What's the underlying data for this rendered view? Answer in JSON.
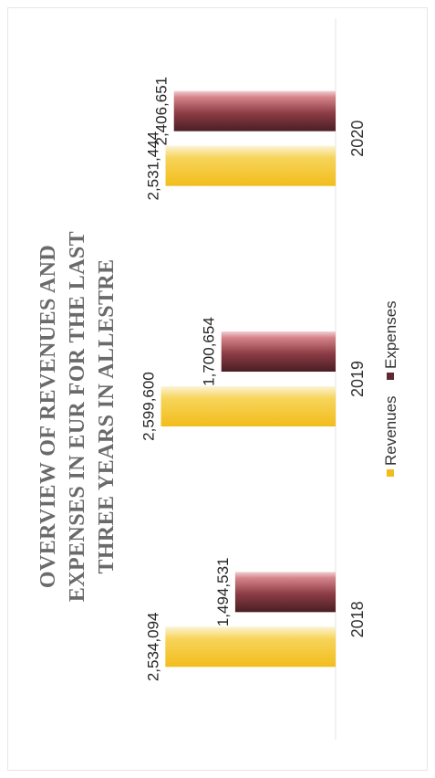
{
  "chart_data": {
    "type": "bar",
    "title_lines": [
      "OVERVIEW OF REVENUES AND",
      "EXPENSES IN EUR FOR THE LAST",
      "THREE YEARS IN ALLESTRE"
    ],
    "categories": [
      "2018",
      "2019",
      "2020"
    ],
    "series": [
      {
        "name": "Revenues",
        "values": [
          2534094,
          2599600,
          2531444
        ],
        "labels": [
          "2,534,094",
          "2,599,600",
          "2,531,444"
        ],
        "color": "#f2bd1c"
      },
      {
        "name": "Expenses",
        "values": [
          1494531,
          1700654,
          2406651
        ],
        "labels": [
          "1,494,531",
          "1,700,654",
          "2,406,651"
        ],
        "color": "#5e2a31"
      }
    ],
    "xlabel": "",
    "ylabel": "",
    "ylim": [
      0,
      3000000
    ],
    "grid": false,
    "legend_position": "bottom",
    "orientation": "rotated-90-ccw"
  }
}
